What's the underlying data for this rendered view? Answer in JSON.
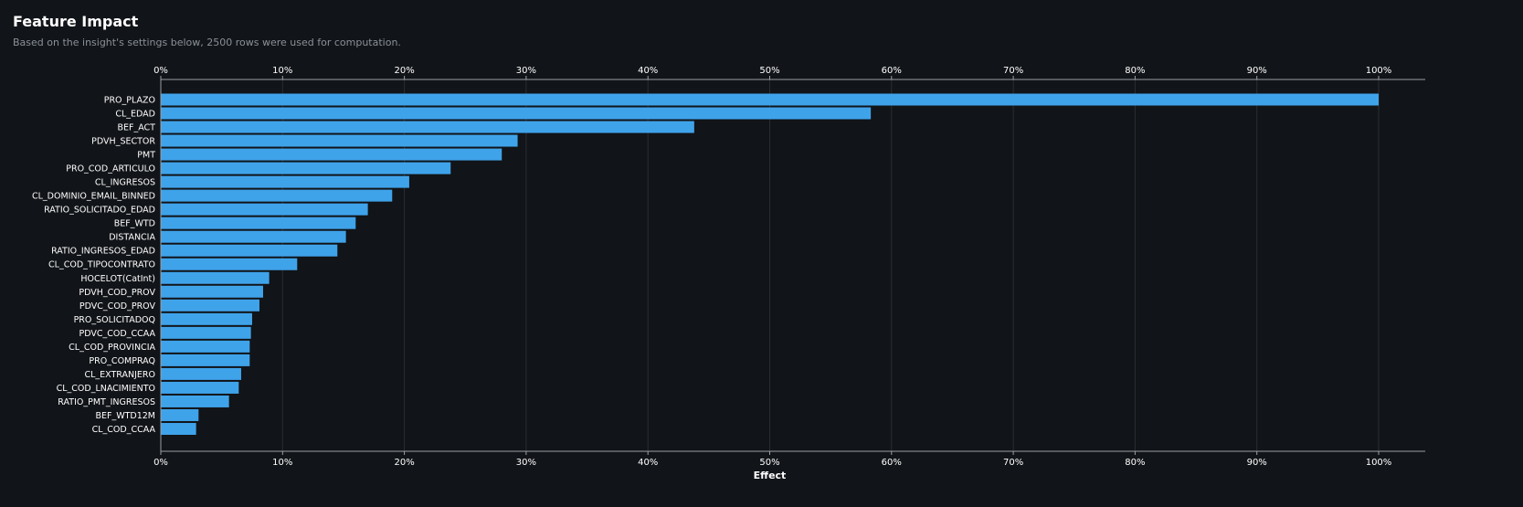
{
  "header": {
    "title": "Feature Impact",
    "subtitle": "Based on the insight's settings below, 2500 rows were used for computation."
  },
  "colors": {
    "background": "#111418",
    "bar": "#3fa3ea",
    "grid": "#2a2e34",
    "axis": "#9aa0a6",
    "text": "#ffffff",
    "subtitle": "#8b9199"
  },
  "chart_data": {
    "type": "bar",
    "orientation": "horizontal",
    "xlabel": "Effect",
    "ylabel": "",
    "xlim": [
      0,
      100
    ],
    "x_ticks": [
      "0%",
      "10%",
      "20%",
      "30%",
      "40%",
      "50%",
      "60%",
      "70%",
      "80%",
      "90%",
      "100%"
    ],
    "x_axis_position": "top-and-bottom",
    "grid": true,
    "legend": "none",
    "categories": [
      "PRO_PLAZO",
      "CL_EDAD",
      "BEF_ACT",
      "PDVH_SECTOR",
      "PMT",
      "PRO_COD_ARTICULO",
      "CL_INGRESOS",
      "CL_DOMINIO_EMAIL_BINNED",
      "RATIO_SOLICITADO_EDAD",
      "BEF_WTD",
      "DISTANCIA",
      "RATIO_INGRESOS_EDAD",
      "CL_COD_TIPOCONTRATO",
      "HOCELOT(CatInt)",
      "PDVH_COD_PROV",
      "PDVC_COD_PROV",
      "PRO_SOLICITADOQ",
      "PDVC_COD_CCAA",
      "CL_COD_PROVINCIA",
      "PRO_COMPRAQ",
      "CL_EXTRANJERO",
      "CL_COD_LNACIMIENTO",
      "RATIO_PMT_INGRESOS",
      "BEF_WTD12M",
      "CL_COD_CCAA"
    ],
    "values": [
      100,
      58.3,
      43.8,
      29.3,
      28.0,
      23.8,
      20.4,
      19.0,
      17.0,
      16.0,
      15.2,
      14.5,
      11.2,
      8.9,
      8.4,
      8.1,
      7.5,
      7.4,
      7.3,
      7.3,
      6.6,
      6.4,
      5.6,
      3.1,
      2.9
    ]
  }
}
